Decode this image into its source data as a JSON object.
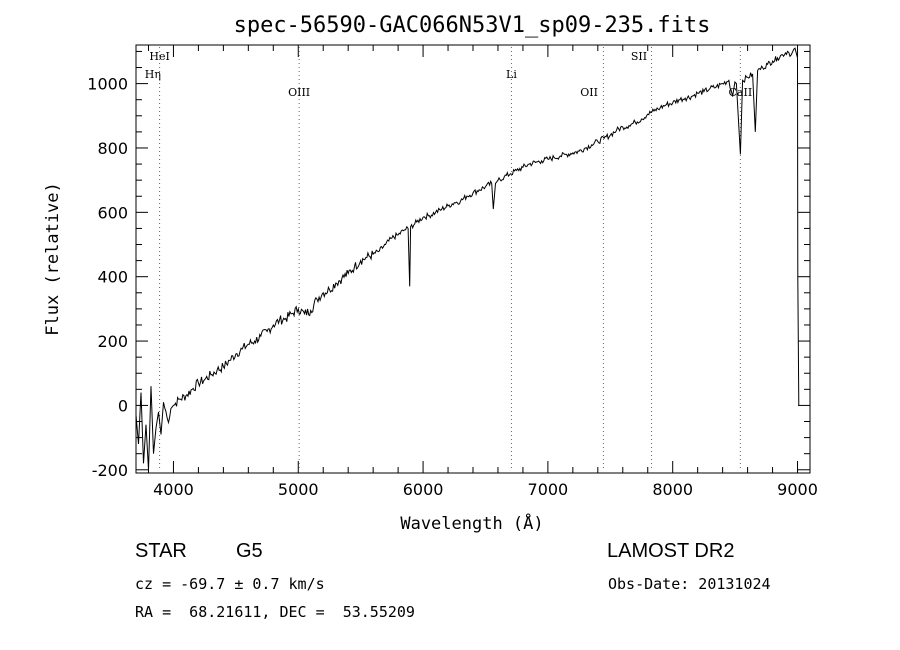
{
  "chart_data": {
    "type": "line",
    "title": "spec-56590-GAC066N53V1_sp09-235.fits",
    "xlabel": "Wavelength (Å)",
    "ylabel": "Flux (relative)",
    "xlim": [
      3700,
      9100
    ],
    "ylim": [
      -210,
      1120
    ],
    "x_ticks": [
      4000,
      5000,
      6000,
      7000,
      8000,
      9000
    ],
    "y_ticks": [
      -200,
      0,
      200,
      400,
      600,
      800,
      1000
    ],
    "grid": false,
    "series": [
      {
        "x": [
          3700,
          3720,
          3740,
          3760,
          3780,
          3800,
          3820,
          3840,
          3860,
          3880,
          3900,
          3920,
          3950,
          3980,
          4000,
          4050,
          4100,
          4150,
          4200,
          4250,
          4300,
          4350,
          4400,
          4450,
          4500,
          4550,
          4600,
          4650,
          4700,
          4750,
          4800,
          4850,
          4900,
          4950,
          5000,
          5050,
          5100,
          5150,
          5200,
          5250,
          5300,
          5350,
          5400,
          5450,
          5500,
          5550,
          5600,
          5650,
          5700,
          5750,
          5800,
          5850,
          5880,
          5893,
          5900,
          5950,
          6000,
          6050,
          6100,
          6150,
          6200,
          6250,
          6300,
          6350,
          6400,
          6450,
          6500,
          6550,
          6563,
          6580,
          6600,
          6650,
          6700,
          6750,
          6800,
          6850,
          6900,
          6950,
          7000,
          7050,
          7100,
          7150,
          7200,
          7250,
          7300,
          7350,
          7400,
          7450,
          7500,
          7550,
          7600,
          7650,
          7700,
          7750,
          7800,
          7850,
          7900,
          7950,
          8000,
          8050,
          8100,
          8150,
          8200,
          8250,
          8300,
          8350,
          8400,
          8450,
          8480,
          8498,
          8510,
          8542,
          8560,
          8600,
          8640,
          8662,
          8680,
          8720,
          8760,
          8800,
          8840,
          8880,
          8920,
          8950,
          8980,
          9000,
          9002,
          9010
        ],
        "y": [
          -30,
          -120,
          40,
          -180,
          -60,
          -200,
          60,
          -150,
          -70,
          -20,
          -90,
          10,
          -40,
          -10,
          0,
          20,
          30,
          50,
          70,
          80,
          95,
          110,
          120,
          140,
          160,
          175,
          190,
          200,
          215,
          230,
          250,
          265,
          270,
          285,
          300,
          285,
          295,
          330,
          350,
          360,
          380,
          395,
          410,
          430,
          450,
          460,
          470,
          480,
          500,
          520,
          530,
          545,
          550,
          370,
          555,
          570,
          585,
          590,
          600,
          610,
          620,
          630,
          635,
          650,
          660,
          670,
          680,
          690,
          610,
          690,
          700,
          710,
          720,
          730,
          740,
          750,
          755,
          760,
          765,
          770,
          775,
          780,
          785,
          790,
          800,
          810,
          820,
          830,
          840,
          855,
          865,
          870,
          880,
          890,
          905,
          915,
          925,
          935,
          940,
          950,
          955,
          960,
          970,
          975,
          985,
          990,
          1000,
          1010,
          960,
          1005,
          1000,
          780,
          1010,
          1020,
          1030,
          850,
          1040,
          1050,
          1060,
          1070,
          1080,
          1090,
          1100,
          1090,
          1110,
          1080,
          400,
          0
        ]
      }
    ],
    "line_marks": [
      {
        "label": "HeI",
        "x": 3889,
        "tag": "top"
      },
      {
        "label": "Hη",
        "x": 3835,
        "tag": "top2"
      },
      {
        "label": "OIII",
        "x": 5007,
        "tag": "mid"
      },
      {
        "label": "Li",
        "x": 6708,
        "tag": "hi"
      },
      {
        "label": "OII",
        "x": 7330,
        "tag": "mid"
      },
      {
        "label": "SII",
        "x": 7730,
        "tag": "top"
      },
      {
        "label": "CaII",
        "x": 8542,
        "tag": "mid"
      }
    ],
    "line_mark_x_dotted": [
      3889,
      5007,
      6708,
      7445,
      7830,
      8542
    ]
  },
  "info": {
    "object_class": "STAR",
    "subclass": "G5",
    "survey": "LAMOST DR2",
    "redshift": "cz = -69.7 ± 0.7 km/s",
    "obs_date": "Obs-Date: 20131024",
    "coords": "RA =  68.21611, DEC =  53.55209"
  }
}
